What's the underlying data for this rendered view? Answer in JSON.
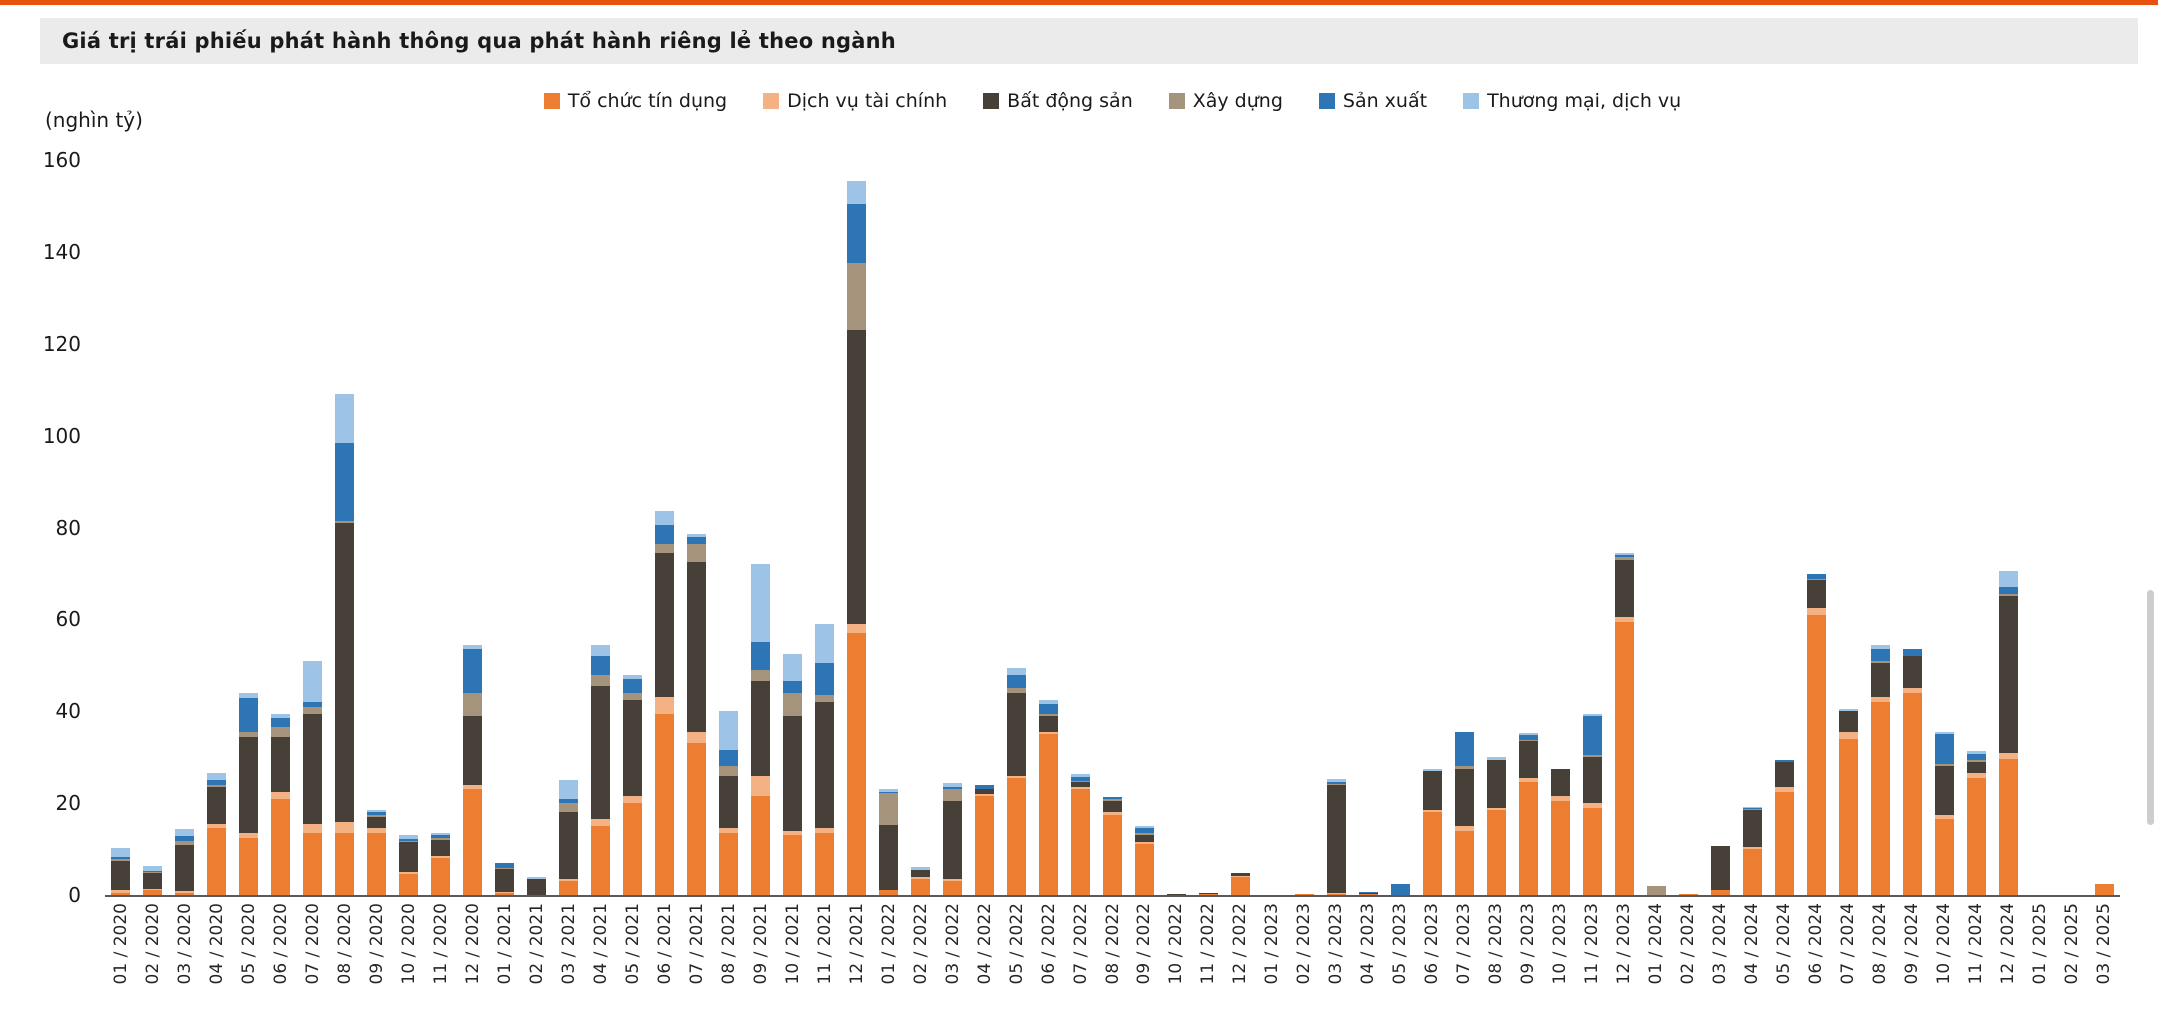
{
  "page": {
    "accent_line_color": "#E8500E",
    "header": {
      "title": "Giá trị trái phiếu phát hành thông qua phát hành riêng lẻ theo ngành",
      "bg_color": "#EBEBEB"
    },
    "y_axis_unit": "(nghìn tỷ)"
  },
  "chart_data": {
    "type": "bar",
    "stacked": true,
    "title": "Giá trị trái phiếu phát hành thông qua phát hành riêng lẻ theo ngành",
    "xlabel": "",
    "ylabel": "(nghìn tỷ)",
    "ylim": [
      0,
      160
    ],
    "yticks": [
      0,
      20,
      40,
      60,
      80,
      100,
      120,
      140,
      160
    ],
    "grid": false,
    "legend_position": "top",
    "categories": [
      "01 / 2020",
      "02 / 2020",
      "03 / 2020",
      "04 / 2020",
      "05 / 2020",
      "06 / 2020",
      "07 / 2020",
      "08 / 2020",
      "09 / 2020",
      "10 / 2020",
      "11 / 2020",
      "12 / 2020",
      "01 / 2021",
      "02 / 2021",
      "03 / 2021",
      "04 / 2021",
      "05 / 2021",
      "06 / 2021",
      "07 / 2021",
      "08 / 2021",
      "09 / 2021",
      "10 / 2021",
      "11 / 2021",
      "12 / 2021",
      "01 / 2022",
      "02 / 2022",
      "03 / 2022",
      "04 / 2022",
      "05 / 2022",
      "06 / 2022",
      "07 / 2022",
      "08 / 2022",
      "09 / 2022",
      "10 / 2022",
      "11 / 2022",
      "12 / 2022",
      "01 / 2023",
      "02 / 2023",
      "03 / 2023",
      "04 / 2023",
      "05 / 2023",
      "06 / 2023",
      "07 / 2023",
      "08 / 2023",
      "09 / 2023",
      "10 / 2023",
      "11 / 2023",
      "12 / 2023",
      "01 / 2024",
      "02 / 2024",
      "03 / 2024",
      "04 / 2024",
      "05 / 2024",
      "06 / 2024",
      "07 / 2024",
      "08 / 2024",
      "09 / 2024",
      "10 / 2024",
      "11 / 2024",
      "12 / 2024",
      "01 / 2025",
      "02 / 2025",
      "03 / 2025"
    ],
    "series": [
      {
        "name": "Tổ chức tín dụng",
        "color": "#ED7D31",
        "values": [
          0.5,
          1,
          0.5,
          14.5,
          12.5,
          21,
          13.5,
          13.5,
          13.5,
          4.5,
          8,
          23,
          0.5,
          0,
          3,
          15,
          20,
          39.5,
          33,
          13.5,
          21.5,
          13,
          13.5,
          57,
          1,
          3.5,
          3,
          21.5,
          25.5,
          35,
          23,
          17.5,
          11,
          0,
          0.3,
          4,
          0,
          0.2,
          0.3,
          0.3,
          0,
          18,
          14,
          18.5,
          24.5,
          20.5,
          19,
          59.5,
          0,
          0.2,
          1,
          10,
          22.5,
          61,
          34,
          42,
          44,
          16.5,
          25.5,
          29.5,
          0,
          0,
          2.5
        ]
      },
      {
        "name": "Dịch vụ tài chính",
        "color": "#F4B183",
        "values": [
          0.5,
          0.3,
          0.3,
          1,
          1,
          1.5,
          2,
          2.5,
          1,
          0.5,
          0.5,
          1,
          0.2,
          0,
          0.5,
          1.5,
          1.5,
          3.5,
          2.5,
          1,
          4.5,
          1,
          1,
          2,
          0.2,
          0.5,
          0.5,
          0.5,
          0.5,
          0.5,
          0.5,
          0.5,
          0.5,
          0,
          0,
          0.2,
          0,
          0,
          0.2,
          0,
          0,
          0.5,
          1,
          0.5,
          1,
          1,
          1,
          1,
          0,
          0,
          0.2,
          0.5,
          1,
          1.5,
          1.5,
          1,
          1,
          1,
          1,
          1.5,
          0,
          0,
          0
        ]
      },
      {
        "name": "Bất động sản",
        "color": "#474038",
        "values": [
          6.5,
          3.5,
          10,
          8,
          21,
          12,
          24,
          65,
          2.5,
          6.5,
          3.5,
          15,
          5,
          3.5,
          14.5,
          29,
          21,
          31.5,
          37,
          11.5,
          20.5,
          25,
          27.5,
          64,
          14,
          1.5,
          17,
          1,
          18,
          3.5,
          1,
          2.5,
          1.5,
          0.3,
          0.2,
          0.5,
          0,
          0.1,
          23.5,
          0.2,
          0,
          8.5,
          12.5,
          10.5,
          8,
          6,
          10,
          12.5,
          0,
          0.1,
          9.5,
          8,
          5.5,
          6,
          4.5,
          7.5,
          7,
          10.5,
          2.5,
          34,
          0,
          0,
          0
        ]
      },
      {
        "name": "Xây dựng",
        "color": "#A6937C",
        "values": [
          0.3,
          0.2,
          1,
          0.5,
          1,
          2,
          1.5,
          0.5,
          0.5,
          0.3,
          0.5,
          5,
          0.2,
          0,
          2,
          2.5,
          1.5,
          2,
          4,
          2,
          2.5,
          5,
          1.5,
          14.5,
          7,
          0,
          2.5,
          0,
          1,
          0.5,
          0.3,
          0.3,
          0.5,
          0,
          0,
          0,
          0,
          0,
          0.2,
          0,
          0,
          0,
          0.5,
          0,
          0.3,
          0,
          0.5,
          0.5,
          2,
          0,
          0,
          0.2,
          0,
          0.3,
          0,
          0.5,
          0,
          0.5,
          0.3,
          0.5,
          0,
          0,
          0
        ]
      },
      {
        "name": "Sản xuất",
        "color": "#2E75B6",
        "values": [
          0.5,
          0.3,
          1,
          1,
          7.5,
          2,
          1,
          17,
          0.5,
          0.3,
          0.5,
          9.5,
          1,
          0,
          1,
          4,
          3,
          4,
          1.5,
          3.5,
          6,
          2.5,
          7,
          13,
          0.3,
          0,
          0.5,
          1,
          3,
          2,
          1,
          0.5,
          1,
          0,
          0,
          0,
          0,
          0,
          0.5,
          0.2,
          2.5,
          0,
          7.5,
          0,
          1,
          0,
          8.5,
          0.5,
          0,
          0,
          0,
          0.2,
          0.5,
          1,
          0,
          2.5,
          1.5,
          6.5,
          1.5,
          1.5,
          0,
          0,
          0
        ]
      },
      {
        "name": "Thương mại, dịch vụ",
        "color": "#9DC3E6",
        "values": [
          2,
          1,
          1.5,
          1.5,
          1,
          1,
          9,
          10.5,
          0.5,
          1,
          0.5,
          1,
          0,
          0.5,
          4,
          2.5,
          1,
          3,
          0.5,
          8.5,
          17,
          6,
          8.5,
          5,
          0.5,
          0.5,
          1,
          0,
          1.5,
          1,
          0.5,
          0,
          0.5,
          0,
          0,
          0,
          0,
          0,
          0.5,
          0,
          0,
          0.5,
          0,
          0.5,
          0.5,
          0,
          0.5,
          0.5,
          0,
          0,
          0,
          0.3,
          0,
          0,
          0.5,
          1,
          0,
          0.5,
          0.5,
          3.5,
          0,
          0,
          0
        ]
      }
    ]
  }
}
